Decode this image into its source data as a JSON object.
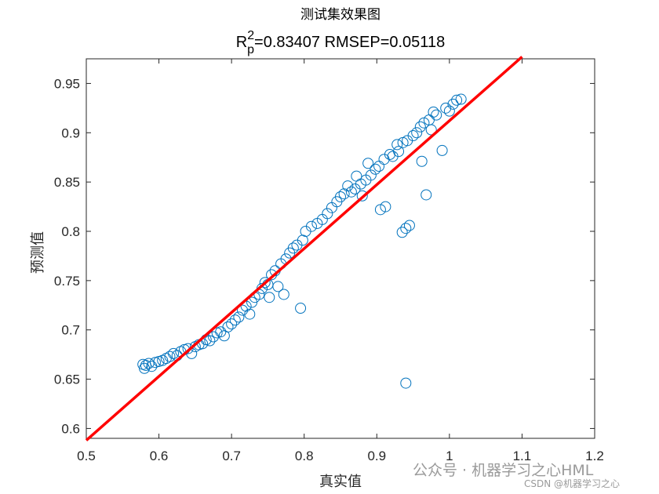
{
  "chart_data": {
    "type": "scatter",
    "title": "测试集效果图",
    "subtitle": {
      "r_main": "R",
      "r_sup": "2",
      "r_sub": "p",
      "rest": "=0.83407  RMSEP=0.05118"
    },
    "xlabel": "真实值",
    "ylabel": "预测值",
    "xlim": [
      0.5,
      1.2
    ],
    "ylim": [
      0.59,
      0.975
    ],
    "xticks": [
      "0.5",
      "0.6",
      "0.7",
      "0.8",
      "0.9",
      "1",
      "1.1",
      "1.2"
    ],
    "yticks": [
      "0.6",
      "0.65",
      "0.7",
      "0.75",
      "0.8",
      "0.85",
      "0.9",
      "0.95"
    ],
    "grid": false,
    "marker_color": "#0072BD",
    "line_color": "#FF0000",
    "fit_line": {
      "x": [
        0.5,
        1.1
      ],
      "y": [
        0.588,
        0.977
      ]
    },
    "points": [
      [
        0.578,
        0.665
      ],
      [
        0.58,
        0.661
      ],
      [
        0.582,
        0.664
      ],
      [
        0.586,
        0.666
      ],
      [
        0.59,
        0.663
      ],
      [
        0.595,
        0.667
      ],
      [
        0.6,
        0.668
      ],
      [
        0.605,
        0.669
      ],
      [
        0.61,
        0.671
      ],
      [
        0.615,
        0.673
      ],
      [
        0.62,
        0.676
      ],
      [
        0.625,
        0.674
      ],
      [
        0.63,
        0.678
      ],
      [
        0.635,
        0.68
      ],
      [
        0.64,
        0.681
      ],
      [
        0.645,
        0.676
      ],
      [
        0.65,
        0.683
      ],
      [
        0.655,
        0.685
      ],
      [
        0.66,
        0.686
      ],
      [
        0.665,
        0.69
      ],
      [
        0.67,
        0.689
      ],
      [
        0.675,
        0.693
      ],
      [
        0.68,
        0.697
      ],
      [
        0.685,
        0.698
      ],
      [
        0.69,
        0.694
      ],
      [
        0.695,
        0.703
      ],
      [
        0.7,
        0.706
      ],
      [
        0.705,
        0.71
      ],
      [
        0.71,
        0.713
      ],
      [
        0.715,
        0.72
      ],
      [
        0.72,
        0.724
      ],
      [
        0.725,
        0.716
      ],
      [
        0.728,
        0.728
      ],
      [
        0.732,
        0.733
      ],
      [
        0.738,
        0.736
      ],
      [
        0.742,
        0.742
      ],
      [
        0.746,
        0.748
      ],
      [
        0.75,
        0.746
      ],
      [
        0.752,
        0.733
      ],
      [
        0.755,
        0.756
      ],
      [
        0.76,
        0.76
      ],
      [
        0.764,
        0.744
      ],
      [
        0.768,
        0.767
      ],
      [
        0.772,
        0.736
      ],
      [
        0.775,
        0.772
      ],
      [
        0.78,
        0.778
      ],
      [
        0.785,
        0.783
      ],
      [
        0.79,
        0.786
      ],
      [
        0.795,
        0.722
      ],
      [
        0.798,
        0.791
      ],
      [
        0.802,
        0.8
      ],
      [
        0.81,
        0.805
      ],
      [
        0.818,
        0.808
      ],
      [
        0.825,
        0.812
      ],
      [
        0.832,
        0.818
      ],
      [
        0.838,
        0.824
      ],
      [
        0.845,
        0.83
      ],
      [
        0.85,
        0.835
      ],
      [
        0.855,
        0.838
      ],
      [
        0.86,
        0.846
      ],
      [
        0.865,
        0.84
      ],
      [
        0.87,
        0.843
      ],
      [
        0.872,
        0.856
      ],
      [
        0.878,
        0.848
      ],
      [
        0.88,
        0.836
      ],
      [
        0.885,
        0.852
      ],
      [
        0.888,
        0.869
      ],
      [
        0.892,
        0.857
      ],
      [
        0.898,
        0.863
      ],
      [
        0.903,
        0.866
      ],
      [
        0.905,
        0.822
      ],
      [
        0.91,
        0.873
      ],
      [
        0.912,
        0.825
      ],
      [
        0.918,
        0.878
      ],
      [
        0.922,
        0.876
      ],
      [
        0.928,
        0.888
      ],
      [
        0.93,
        0.881
      ],
      [
        0.935,
        0.799
      ],
      [
        0.936,
        0.89
      ],
      [
        0.94,
        0.803
      ],
      [
        0.942,
        0.892
      ],
      [
        0.945,
        0.806
      ],
      [
        0.95,
        0.897
      ],
      [
        0.955,
        0.9
      ],
      [
        0.96,
        0.906
      ],
      [
        0.962,
        0.871
      ],
      [
        0.965,
        0.91
      ],
      [
        0.968,
        0.837
      ],
      [
        0.972,
        0.913
      ],
      [
        0.975,
        0.903
      ],
      [
        0.978,
        0.921
      ],
      [
        0.982,
        0.918
      ],
      [
        0.99,
        0.882
      ],
      [
        0.995,
        0.925
      ],
      [
        1.0,
        0.922
      ],
      [
        1.005,
        0.929
      ],
      [
        1.01,
        0.933
      ],
      [
        1.016,
        0.934
      ],
      [
        0.94,
        0.646
      ]
    ]
  },
  "watermark": {
    "main": "公众号 · 机器学习之心HML",
    "sub": "CSDN @机器学习之心"
  }
}
